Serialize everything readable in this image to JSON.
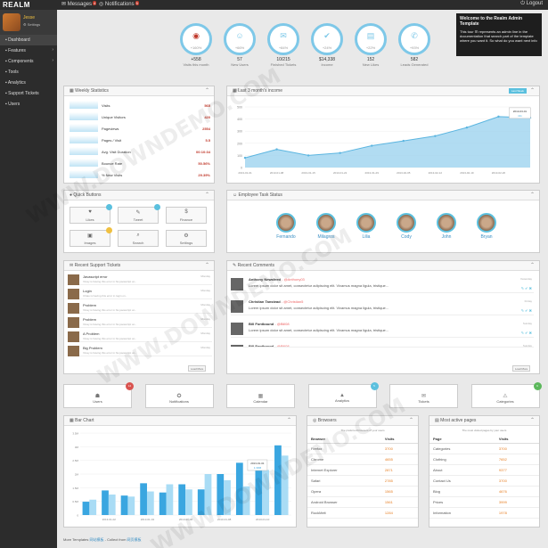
{
  "topbar": {
    "logo": "REALM",
    "messages": "Messages",
    "messages_badge": "4",
    "notifications": "Notifications",
    "notifications_badge": "5",
    "logout": "Logout"
  },
  "profile": {
    "name": "Jesse",
    "settings": "Settings"
  },
  "nav": [
    "Dashboard",
    "Features",
    "Components",
    "Tools",
    "Analytics",
    "Support Tickets",
    "Users"
  ],
  "stats": [
    {
      "icon": "eye-icon",
      "glyph": "◉",
      "pct": "+160%",
      "value": "+558",
      "label": "Visits this month"
    },
    {
      "icon": "user-icon",
      "glyph": "☺",
      "pct": "+66%",
      "value": "57",
      "label": "New Users"
    },
    {
      "icon": "megaphone-icon",
      "glyph": "✉",
      "pct": "+84%",
      "value": "10/215",
      "label": "Finished Tickets"
    },
    {
      "icon": "thumbs-up-icon",
      "glyph": "✔",
      "pct": "+24%",
      "value": "$14,338",
      "label": "Income"
    },
    {
      "icon": "card-icon",
      "glyph": "▤",
      "pct": "+22%",
      "value": "152",
      "label": "New Likes"
    },
    {
      "icon": "phone-icon",
      "glyph": "✆",
      "pct": "+93%",
      "value": "582",
      "label": "Leads Generated"
    }
  ],
  "tooltip": {
    "title": "Welcome to the Realm Admin Template",
    "body": "This tour ☰ represents an admin line in the documentation that search part of the template where you want it. So what do you want next info"
  },
  "weekly": {
    "title": "Weekly Statistics",
    "rows": [
      {
        "name": "Visits",
        "value": "565"
      },
      {
        "name": "Unique Visitors",
        "value": "420"
      },
      {
        "name": "Pageviews",
        "value": "2554"
      },
      {
        "name": "Pages / Visit",
        "value": "5.5"
      },
      {
        "name": "Avg. Visit Duration",
        "value": "00:10:34"
      },
      {
        "name": "Bounce Rate",
        "value": "50.56%"
      },
      {
        "name": "% New Visits",
        "value": "29.39%"
      }
    ]
  },
  "income": {
    "title": "Last 3 month's income",
    "button": "Last Week",
    "tooltip": {
      "date": "2013-03-01",
      "value": "411"
    }
  },
  "chart_data": [
    {
      "type": "area",
      "title": "Last 3 month's income",
      "x": [
        "2013-01-01",
        "2013-01-08",
        "2013-01-15",
        "2013-01-22",
        "2013-01-29",
        "2013-02-05",
        "2013-02-12",
        "2013-02-19",
        "2013-02-26",
        "2013-03-01"
      ],
      "series": [
        {
          "values": [
            80,
            150,
            100,
            120,
            180,
            220,
            260,
            330,
            420,
            411
          ]
        }
      ],
      "ylim": [
        0,
        500
      ],
      "yticks": [
        "0",
        "100",
        "200",
        "300",
        "400",
        "500"
      ]
    },
    {
      "type": "bar",
      "title": "Bar Chart",
      "x": [
        "2013-01-01",
        "2013-01-02",
        "2013-01-03",
        "2013-01-04",
        "2013-01-05",
        "2013-01-06",
        "2013-01-07",
        "2013-01-08",
        "2013-01-09",
        "2013-01-10",
        "2013-01-11"
      ],
      "series": [
        {
          "values": [
            0.65,
            1.2,
            0.95,
            1.55,
            1.1,
            1.5,
            1.25,
            2.0,
            2.55,
            2.3,
            3.4
          ]
        },
        {
          "values": [
            0.75,
            1.0,
            0.9,
            1.15,
            1.5,
            1.25,
            2.0,
            1.7,
            1.4,
            2.2,
            2.9
          ]
        }
      ],
      "ylim": [
        0,
        4
      ],
      "yticks": [
        "0",
        "0.5M",
        "1.5M",
        "2M",
        "2.5M",
        "3M",
        "3.5M"
      ],
      "tooltip": {
        "date": "2013-01-01",
        "value": "1.30M"
      }
    }
  ],
  "quick": {
    "title": "Quick Buttons",
    "buttons": [
      {
        "label": "Likes",
        "icon": "like-icon",
        "glyph": "♥",
        "badge": "#5bc0de"
      },
      {
        "label": "Tweet",
        "icon": "twitter-icon",
        "glyph": "✎",
        "badge": "#5bc0de"
      },
      {
        "label": "Finance",
        "icon": "finance-icon",
        "glyph": "$",
        "badge": ""
      },
      {
        "label": "Images",
        "icon": "image-icon",
        "glyph": "▣",
        "badge": "#f0c040"
      },
      {
        "label": "Search",
        "icon": "search-icon",
        "glyph": "⌕",
        "badge": ""
      },
      {
        "label": "Settings",
        "icon": "gear-icon",
        "glyph": "⚙",
        "badge": ""
      }
    ]
  },
  "employees": {
    "title": "Employee Task Status",
    "list": [
      "Fernando",
      "Milagros",
      "Lilia",
      "Cody",
      "John",
      "Bryan"
    ]
  },
  "tickets": {
    "title": "Recent Support Tickets",
    "load": "Load More",
    "list": [
      {
        "title": "Javascript error",
        "sub": "Vinay is having this error in his javascript on..",
        "date": "Monday"
      },
      {
        "title": "Login",
        "sub": "Chiao is having this error in login on..",
        "date": "Monday"
      },
      {
        "title": "Problem",
        "sub": "Vinay is having this error in his javascript on..",
        "date": "Monday"
      },
      {
        "title": "Problem",
        "sub": "Vinay is having this error in his javascript on..",
        "date": "Monday"
      },
      {
        "title": "A Problem",
        "sub": "Vinay is having this error in his javascript on..",
        "date": "Monday"
      },
      {
        "title": "Big Problem",
        "sub": "Vinay is having this error in his javascript on..",
        "date": "Monday"
      }
    ]
  },
  "comments": {
    "title": "Recent Comments",
    "load": "Load More",
    "list": [
      {
        "name": "Anthony Newsfeed",
        "handle": "Anthony03",
        "text": "Lorem ipsum dolor sit amet, consectetur adipiscing elit. Vivamus magna ligula, tristique...",
        "date": "Yesterday"
      },
      {
        "name": "Christian Tanstead",
        "handle": "Christian5",
        "text": "Lorem ipsum dolor sit amet, consectetur adipiscing elit. Vivamus magna ligula, tristique...",
        "date": "Friday"
      },
      {
        "name": "Bill Fontbound",
        "handle": "Bill08",
        "text": "Lorem ipsum dolor sit amet, consectetur adipiscing elit. Vivamus magna ligula, tristique...",
        "date": "Sunday"
      },
      {
        "name": "Bill Fontbound",
        "handle": "Bill08",
        "text": "Lorem ipsum dolor sit amet, consectetur adipiscing elit.",
        "date": "Sunday"
      }
    ]
  },
  "tiles": [
    {
      "label": "Users",
      "icon": "users-icon",
      "glyph": "☗",
      "badge": "12",
      "badge_color": "#d9534f"
    },
    {
      "label": "Notifications",
      "icon": "bell-icon",
      "glyph": "✪",
      "badge": "",
      "badge_color": ""
    },
    {
      "label": "Calendar",
      "icon": "calendar-icon",
      "glyph": "▦",
      "badge": "",
      "badge_color": ""
    },
    {
      "label": "Analytics",
      "icon": "analytics-icon",
      "glyph": "▲",
      "badge": "5",
      "badge_color": "#5bc0de"
    },
    {
      "label": "Tickets",
      "icon": "ticket-icon",
      "glyph": "✉",
      "badge": "",
      "badge_color": ""
    },
    {
      "label": "Categories",
      "icon": "warning-icon",
      "glyph": "⚠",
      "badge": "9",
      "badge_color": "#5cb85c"
    }
  ],
  "barchart": {
    "title": "Bar Chart"
  },
  "browsers": {
    "title": "Browsers",
    "sub": "The preferred browsers of your users",
    "headers": [
      "Browser",
      "Visits"
    ],
    "rows": [
      [
        "Firefox",
        "3700"
      ],
      [
        "Chrome",
        "4655"
      ],
      [
        "Internet Explorer",
        "2871"
      ],
      [
        "Safari",
        "2785"
      ],
      [
        "Opera",
        "1565"
      ],
      [
        "Android Browser",
        "1561"
      ],
      [
        "RockMelt",
        "1284"
      ]
    ]
  },
  "pages": {
    "title": "Most active pages",
    "sub": "The most visited pages by your users",
    "headers": [
      "Page",
      "Visits"
    ],
    "rows": [
      [
        "Categories",
        "3700"
      ],
      [
        "Clothing",
        "7652"
      ],
      [
        "About",
        "9377"
      ],
      [
        "Contact Us",
        "3700"
      ],
      [
        "Blog",
        "4676"
      ],
      [
        "Prices",
        "3999"
      ],
      [
        "Information",
        "1978"
      ]
    ]
  },
  "footer": {
    "text": "More Templates",
    "link1": "网站模板",
    "mid": "- Collect from",
    "link2": "网页模板"
  },
  "watermark": "WWW.DOWNDEMO.COM"
}
